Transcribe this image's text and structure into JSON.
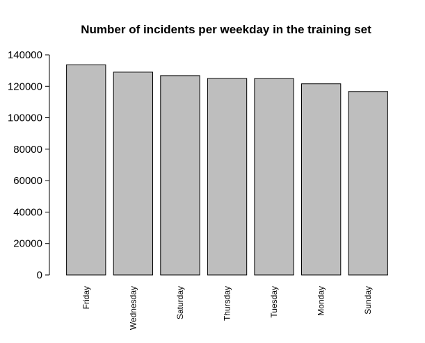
{
  "chart_data": {
    "type": "bar",
    "title": "Number of incidents per weekday in the training set",
    "xlabel": "",
    "ylabel": "",
    "categories": [
      "Friday",
      "Wednesday",
      "Saturday",
      "Thursday",
      "Tuesday",
      "Monday",
      "Sunday"
    ],
    "values": [
      133700,
      129000,
      126800,
      125000,
      124900,
      121600,
      116700
    ],
    "ylim": [
      0,
      140000
    ],
    "yticks": [
      "0",
      "20000",
      "40000",
      "60000",
      "80000",
      "100000",
      "120000",
      "140000"
    ],
    "bar_color": "#bebebe",
    "grid": false,
    "legend": "none"
  }
}
